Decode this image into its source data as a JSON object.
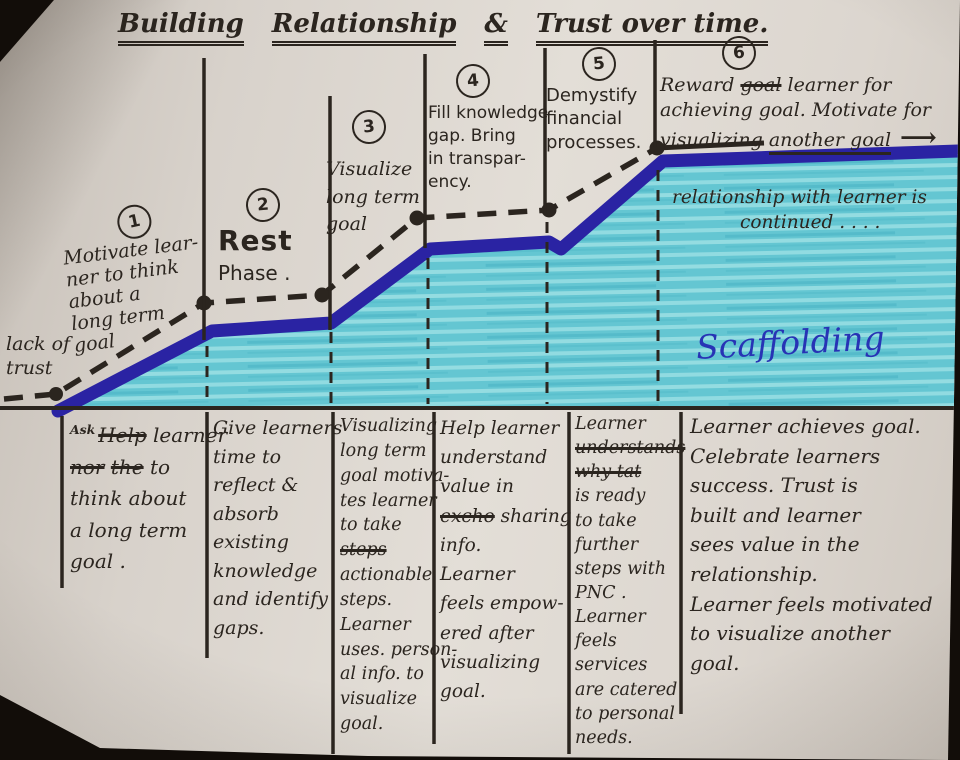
{
  "colors": {
    "ink": "#2b251f",
    "navy": "#2a23a3",
    "cyan": "#64c6d2",
    "blueink": "#2733b5",
    "paper": "#dad4cd"
  },
  "title": {
    "words": [
      [
        {
          "t": "Building",
          "c": "u2"
        },
        {
          "t": "Relationship",
          "c": "u2"
        },
        {
          "t": "&",
          "c": "u2"
        },
        {
          "t": "Trust over time.",
          "c": "u2"
        }
      ]
    ]
  },
  "chart": {
    "lack_of_trust": [
      [
        "lack of"
      ],
      [
        "trust"
      ]
    ],
    "scaffolding": "Scaffolding",
    "relationship_note": [
      [
        "relationship with learner is"
      ],
      [
        {
          "t": "continued . . . .",
          "c": "ind"
        }
      ]
    ],
    "phases": [
      {
        "num": "1",
        "lines": [
          [
            "Motivate lear-"
          ],
          [
            "ner to think"
          ],
          [
            "about  a"
          ],
          [
            "long term"
          ],
          [
            "goal"
          ]
        ]
      },
      {
        "num": "2",
        "lines": [
          [
            {
              "t": "Rest",
              "c": "big"
            }
          ],
          [
            "Phase ."
          ]
        ]
      },
      {
        "num": "3",
        "lines": [
          [
            "Visualize"
          ],
          [
            "long term"
          ],
          [
            "goal"
          ]
        ]
      },
      {
        "num": "4",
        "lines": [
          [
            "Fill knowledge"
          ],
          [
            "gap. Bring"
          ],
          [
            "in transpar-"
          ],
          [
            "ency."
          ]
        ]
      },
      {
        "num": "5",
        "lines": [
          [
            "Demystify"
          ],
          [
            "financial"
          ],
          [
            "processes."
          ]
        ]
      },
      {
        "num": "6",
        "lines": [
          [
            {
              "t": "Reward "
            },
            {
              "t": "goal",
              "c": "strike"
            },
            {
              "t": " learner for"
            }
          ],
          [
            "achieving goal. Motivate for"
          ],
          [
            {
              "t": "visualizing "
            },
            {
              "t": "another goal",
              "c": "u1"
            },
            {
              "t": " ⟶",
              "c": "arrow"
            }
          ]
        ]
      }
    ]
  },
  "table": {
    "columns": [
      {
        "lines": [
          [
            {
              "t": "Ask",
              "c": "sup"
            },
            {
              "t": "Help",
              "c": "strike"
            },
            {
              "t": " learner"
            }
          ],
          [
            {
              "t": "nor",
              "c": "strike"
            },
            {
              "t": " "
            },
            {
              "t": "the",
              "c": "strike"
            },
            {
              "t": " to"
            }
          ],
          [
            "think about"
          ],
          [
            "a long term"
          ],
          [
            "goal ."
          ]
        ]
      },
      {
        "lines": [
          [
            "Give learners"
          ],
          [
            "time to"
          ],
          [
            "reflect &"
          ],
          [
            "absorb"
          ],
          [
            "existing"
          ],
          [
            "knowledge"
          ],
          [
            "and identify"
          ],
          [
            "gaps."
          ]
        ]
      },
      {
        "lines": [
          [
            "Visualizing"
          ],
          [
            "long term"
          ],
          [
            "goal motiva-"
          ],
          [
            "tes learner"
          ],
          [
            "to take"
          ],
          [
            {
              "t": "steps",
              "c": "strike"
            }
          ],
          [
            "actionable"
          ],
          [
            "steps."
          ],
          [
            "Learner"
          ],
          [
            "uses. person-"
          ],
          [
            "al info. to"
          ],
          [
            "visualize"
          ],
          [
            "goal."
          ]
        ]
      },
      {
        "lines": [
          [
            "Help learner"
          ],
          [
            "understand"
          ],
          [
            "value in"
          ],
          [
            {
              "t": "excho",
              "c": "strike"
            },
            {
              "t": " sharing"
            }
          ],
          [
            "info."
          ],
          [
            "Learner"
          ],
          [
            "feels empow-"
          ],
          [
            "ered after"
          ],
          [
            "visualizing"
          ],
          [
            "goal."
          ]
        ]
      },
      {
        "lines": [
          [
            "Learner"
          ],
          [
            {
              "t": "understands",
              "c": "strike"
            }
          ],
          [
            {
              "t": "why tat",
              "c": "strike"
            }
          ],
          [
            "is ready"
          ],
          [
            "to take"
          ],
          [
            "further"
          ],
          [
            "steps with"
          ],
          [
            "PNC ."
          ],
          [
            "Learner"
          ],
          [
            "feels"
          ],
          [
            "services"
          ],
          [
            "are catered"
          ],
          [
            "to personal"
          ],
          [
            "needs."
          ]
        ]
      },
      {
        "lines": [
          [
            "Learner achieves goal."
          ],
          [
            "Celebrate learners"
          ],
          [
            "success. Trust is"
          ],
          [
            "built and learner"
          ],
          [
            "sees value in the"
          ],
          [
            "relationship."
          ],
          [
            "Learner feels motivated"
          ],
          [
            "to visualize another"
          ],
          [
            "goal."
          ]
        ]
      }
    ]
  }
}
